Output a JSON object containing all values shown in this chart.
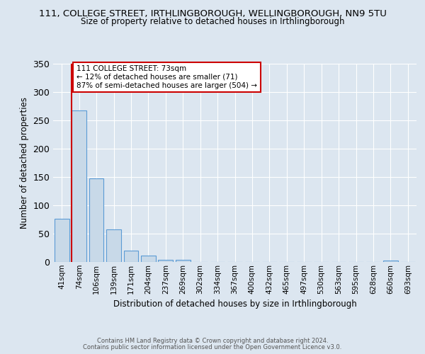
{
  "title_line1": "111, COLLEGE STREET, IRTHLINGBOROUGH, WELLINGBOROUGH, NN9 5TU",
  "title_line2": "Size of property relative to detached houses in Irthlingborough",
  "xlabel": "Distribution of detached houses by size in Irthlingborough",
  "ylabel": "Number of detached properties",
  "bar_labels": [
    "41sqm",
    "74sqm",
    "106sqm",
    "139sqm",
    "171sqm",
    "204sqm",
    "237sqm",
    "269sqm",
    "302sqm",
    "334sqm",
    "367sqm",
    "400sqm",
    "432sqm",
    "465sqm",
    "497sqm",
    "530sqm",
    "563sqm",
    "595sqm",
    "628sqm",
    "660sqm",
    "693sqm"
  ],
  "bar_values": [
    76,
    267,
    147,
    57,
    20,
    11,
    4,
    4,
    0,
    0,
    0,
    0,
    0,
    0,
    0,
    0,
    0,
    0,
    0,
    3,
    0
  ],
  "bar_color": "#c8d9e8",
  "bar_edge_color": "#5b9bd5",
  "ylim": [
    0,
    350
  ],
  "yticks": [
    0,
    50,
    100,
    150,
    200,
    250,
    300,
    350
  ],
  "annotation_title": "111 COLLEGE STREET: 73sqm",
  "annotation_line1": "← 12% of detached houses are smaller (71)",
  "annotation_line2": "87% of semi-detached houses are larger (504) →",
  "annotation_box_facecolor": "#ffffff",
  "annotation_box_edgecolor": "#cc0000",
  "red_line_color": "#cc0000",
  "footer_line1": "Contains HM Land Registry data © Crown copyright and database right 2024.",
  "footer_line2": "Contains public sector information licensed under the Open Government Licence v3.0.",
  "background_color": "#dce6f0",
  "grid_color": "#ffffff"
}
